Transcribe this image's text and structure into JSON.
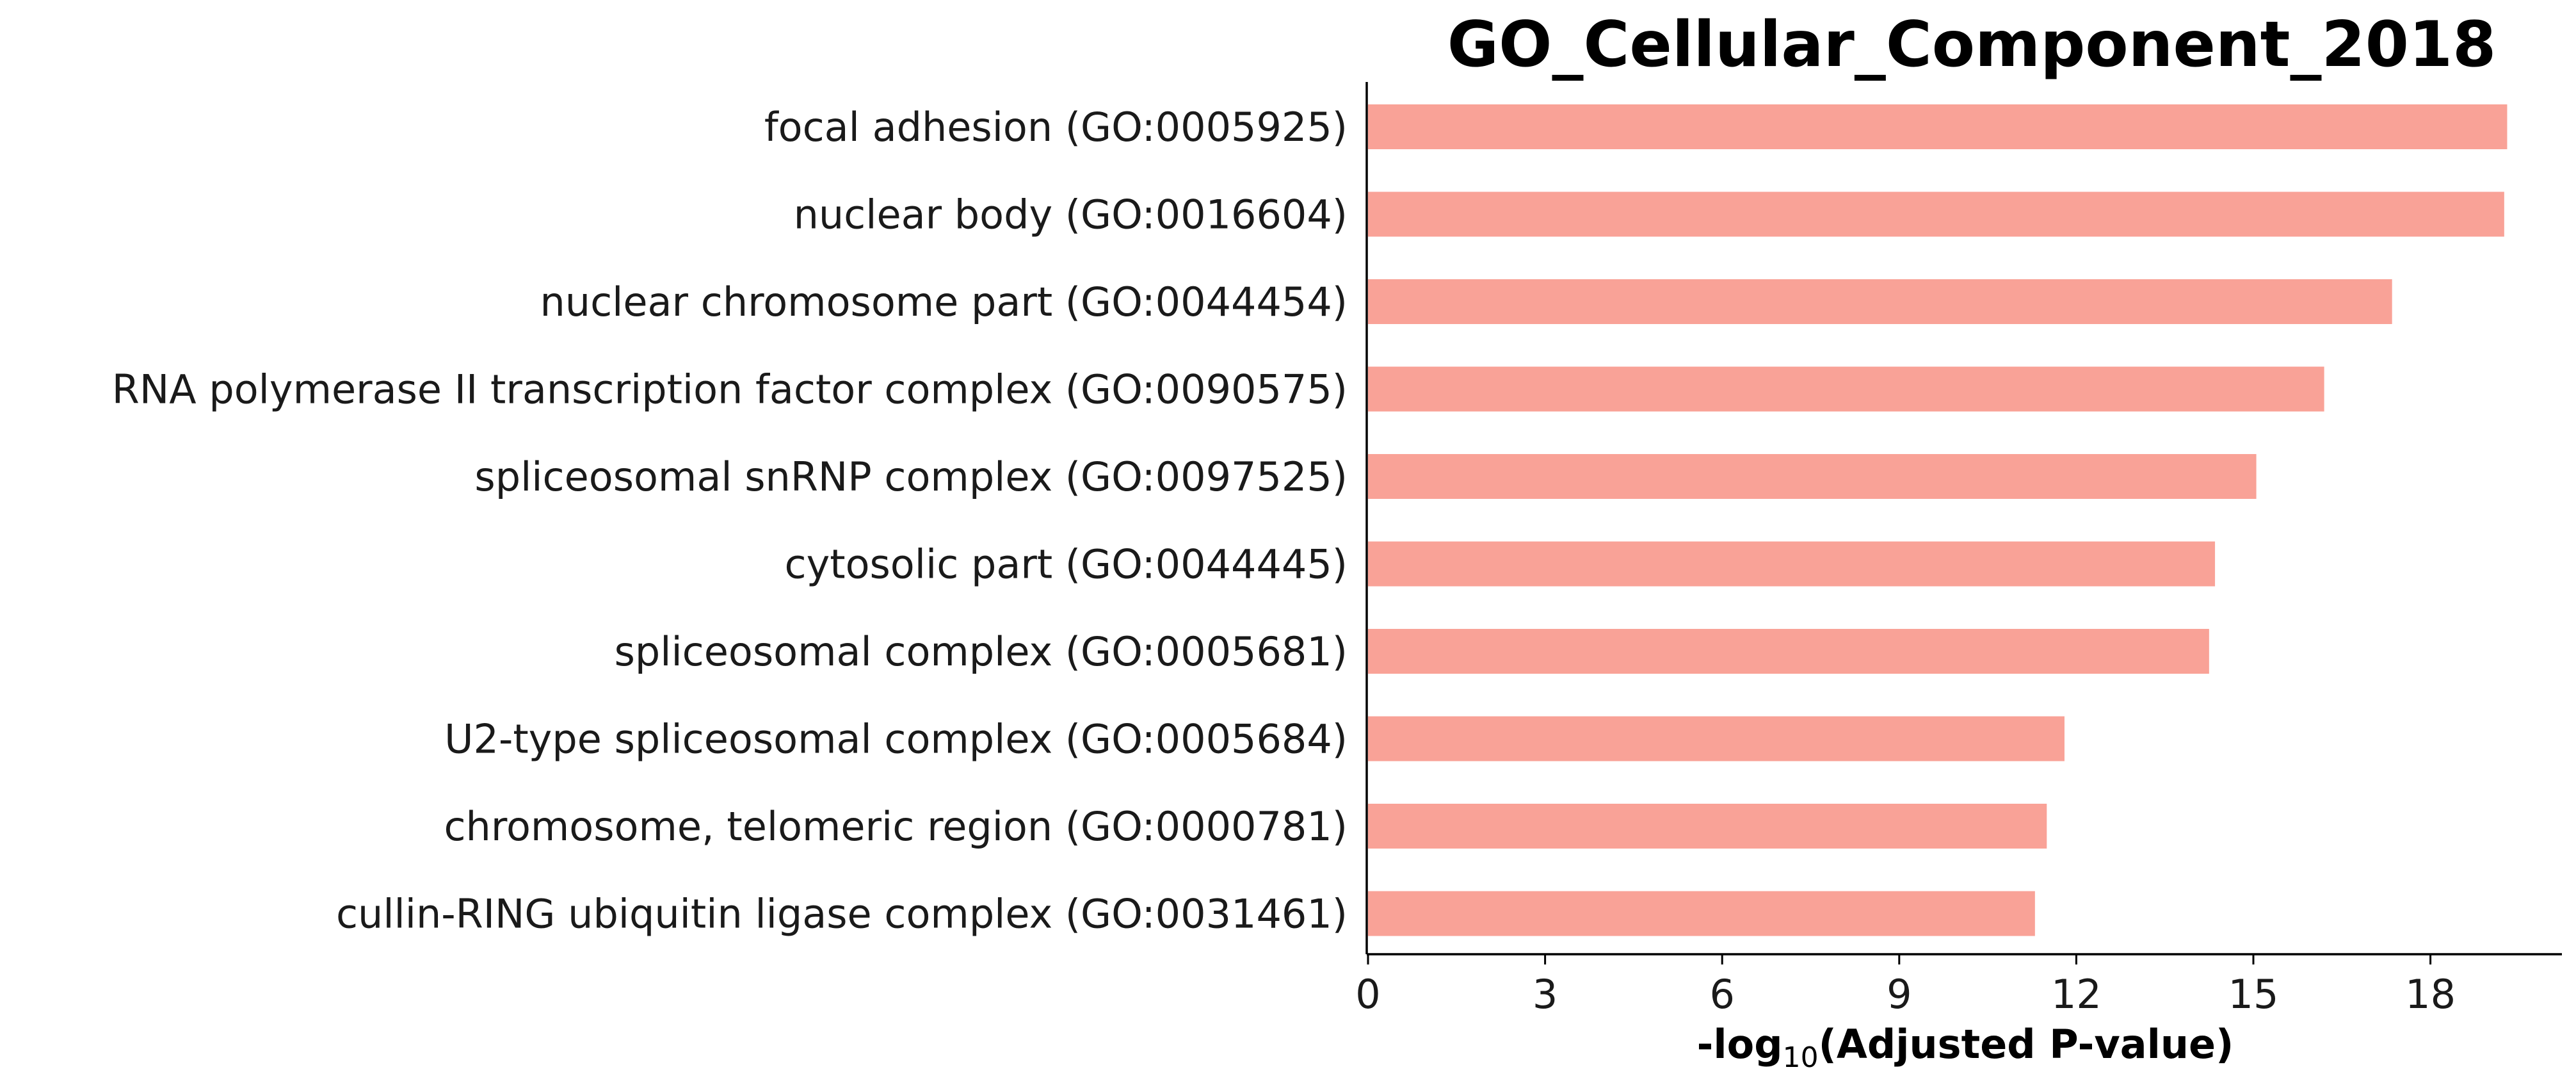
{
  "chart_data": {
    "type": "bar",
    "orientation": "horizontal",
    "title": "GO_Cellular_Component_2018",
    "xlabel": {
      "prefix": "-log",
      "subscript": "10",
      "suffix": "(Adjusted P-value)"
    },
    "ylabel": "",
    "xlim": [
      0,
      20.3
    ],
    "xticks": [
      0,
      3,
      6,
      9,
      12,
      15,
      18
    ],
    "bar_color": "#f9a297",
    "grid": false,
    "categories": [
      "focal adhesion (GO:0005925)",
      "nuclear body (GO:0016604)",
      "nuclear chromosome part (GO:0044454)",
      "RNA polymerase II transcription factor complex (GO:0090575)",
      "spliceosomal snRNP complex (GO:0097525)",
      "cytosolic part (GO:0044445)",
      "spliceosomal complex (GO:0005681)",
      "U2-type spliceosomal complex (GO:0005684)",
      "chromosome, telomeric region (GO:0000781)",
      "cullin-RING ubiquitin ligase complex (GO:0031461)"
    ],
    "values": [
      19.3,
      19.25,
      17.35,
      16.2,
      15.05,
      14.35,
      14.25,
      11.8,
      11.5,
      11.3
    ]
  }
}
